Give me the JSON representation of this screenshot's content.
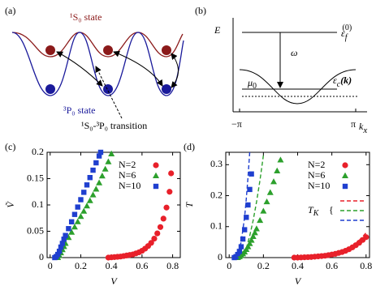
{
  "panel_a": {
    "label": "(a)",
    "upper_state": "¹S₀ state",
    "lower_state": "³P₀ state",
    "transition": "¹S₀-³P₀ transition"
  },
  "panel_b": {
    "label": "(b)",
    "y_axis": "E",
    "x_axis": {
      "symbol": "k",
      "sub": "x"
    },
    "x_ticks": [
      "−π",
      "π"
    ],
    "flat_band": {
      "symbol": "ε",
      "sub": "f",
      "sup": "(0)"
    },
    "dispersive_band": {
      "symbol": "ε",
      "sub": "c",
      "arg": "(k)"
    },
    "hybridization": "ω",
    "chemical_potential": {
      "symbol": "μ",
      "sub": "0"
    }
  },
  "chart_data": [
    {
      "type": "scatter",
      "panel_label": "(c)",
      "x_label": "V",
      "y_label": "Ṽ",
      "xlim": [
        -0.02,
        0.85
      ],
      "ylim": [
        0,
        0.2
      ],
      "xticks": [
        0,
        0.2,
        0.4,
        0.6,
        0.8
      ],
      "yticks": [
        0,
        0.05,
        0.1,
        0.15,
        0.2
      ],
      "series": [
        {
          "name": "N=2",
          "color": "#e8202a",
          "marker": "circle",
          "x": [
            0.38,
            0.4,
            0.42,
            0.44,
            0.46,
            0.48,
            0.5,
            0.52,
            0.54,
            0.56,
            0.58,
            0.6,
            0.62,
            0.64,
            0.66,
            0.68,
            0.7,
            0.72,
            0.74,
            0.76,
            0.78,
            0.79
          ],
          "values": [
            0,
            0.0005,
            0.001,
            0.0015,
            0.002,
            0.003,
            0.004,
            0.005,
            0.006,
            0.008,
            0.01,
            0.013,
            0.017,
            0.022,
            0.028,
            0.036,
            0.046,
            0.058,
            0.074,
            0.095,
            0.125,
            0.16
          ]
        },
        {
          "name": "N=6",
          "color": "#2ca02c",
          "marker": "triangle",
          "x": [
            0.05,
            0.06,
            0.07,
            0.08,
            0.09,
            0.1,
            0.12,
            0.14,
            0.16,
            0.18,
            0.2,
            0.22,
            0.24,
            0.26,
            0.28,
            0.3,
            0.32,
            0.34,
            0.36,
            0.38,
            0.4
          ],
          "values": [
            0,
            0.004,
            0.009,
            0.015,
            0.021,
            0.027,
            0.038,
            0.048,
            0.058,
            0.068,
            0.078,
            0.088,
            0.098,
            0.108,
            0.119,
            0.13,
            0.142,
            0.155,
            0.168,
            0.182,
            0.197
          ]
        },
        {
          "name": "N=10",
          "color": "#1f3fcf",
          "marker": "square",
          "x": [
            0.03,
            0.04,
            0.05,
            0.06,
            0.07,
            0.08,
            0.09,
            0.1,
            0.12,
            0.14,
            0.16,
            0.18,
            0.2,
            0.22,
            0.24,
            0.26,
            0.28,
            0.3,
            0.32,
            0.33
          ],
          "values": [
            0,
            0.002,
            0.006,
            0.012,
            0.02,
            0.027,
            0.035,
            0.042,
            0.055,
            0.068,
            0.082,
            0.096,
            0.11,
            0.124,
            0.138,
            0.152,
            0.166,
            0.18,
            0.193,
            0.2
          ]
        }
      ]
    },
    {
      "type": "scatter",
      "panel_label": "(d)",
      "x_label": "V",
      "y_label": "T",
      "xlim": [
        -0.02,
        0.82
      ],
      "ylim": [
        0,
        0.34
      ],
      "xticks": [
        0,
        0.2,
        0.4,
        0.6,
        0.8
      ],
      "yticks": [
        0,
        0.1,
        0.2,
        0.3
      ],
      "fit_label": {
        "symbol": "T",
        "sub": "K"
      },
      "series": [
        {
          "name": "N=2",
          "color": "#e8202a",
          "marker": "circle",
          "x": [
            0.38,
            0.4,
            0.42,
            0.44,
            0.46,
            0.48,
            0.5,
            0.52,
            0.54,
            0.56,
            0.58,
            0.6,
            0.62,
            0.64,
            0.66,
            0.68,
            0.7,
            0.72,
            0.74,
            0.76,
            0.78,
            0.8
          ],
          "values": [
            0,
            0,
            0.0005,
            0.001,
            0.0015,
            0.002,
            0.003,
            0.004,
            0.005,
            0.006,
            0.008,
            0.01,
            0.012,
            0.015,
            0.018,
            0.022,
            0.027,
            0.033,
            0.04,
            0.048,
            0.057,
            0.066
          ]
        },
        {
          "name": "N=6",
          "color": "#2ca02c",
          "marker": "triangle",
          "x": [
            0.05,
            0.06,
            0.07,
            0.08,
            0.09,
            0.1,
            0.11,
            0.12,
            0.13,
            0.14,
            0.15,
            0.16,
            0.18,
            0.2,
            0.22,
            0.24,
            0.26,
            0.28,
            0.3
          ],
          "values": [
            0,
            0.003,
            0.007,
            0.012,
            0.018,
            0.026,
            0.035,
            0.045,
            0.056,
            0.068,
            0.08,
            0.093,
            0.12,
            0.15,
            0.18,
            0.21,
            0.245,
            0.28,
            0.315
          ]
        },
        {
          "name": "N=10",
          "color": "#1f3fcf",
          "marker": "square",
          "x": [
            0.03,
            0.04,
            0.05,
            0.06,
            0.07,
            0.08,
            0.09,
            0.1,
            0.11,
            0.12,
            0.13
          ],
          "values": [
            0,
            0.003,
            0.01,
            0.02,
            0.035,
            0.06,
            0.09,
            0.13,
            0.17,
            0.22,
            0.27
          ]
        },
        {
          "color": "#e8202a",
          "style": "dashed",
          "x": [
            0.4,
            0.5,
            0.6,
            0.65,
            0.7,
            0.75,
            0.8
          ],
          "values": [
            0,
            0.002,
            0.01,
            0.018,
            0.03,
            0.05,
            0.08
          ]
        },
        {
          "color": "#2ca02c",
          "style": "dashed",
          "x": [
            0.05,
            0.08,
            0.1,
            0.12,
            0.14,
            0.16,
            0.18,
            0.2
          ],
          "values": [
            0,
            0.01,
            0.03,
            0.07,
            0.12,
            0.18,
            0.25,
            0.33
          ]
        },
        {
          "color": "#1f3fcf",
          "style": "dashed",
          "x": [
            0.03,
            0.05,
            0.07,
            0.09,
            0.1,
            0.11,
            0.12
          ],
          "values": [
            0,
            0.01,
            0.05,
            0.13,
            0.19,
            0.26,
            0.34
          ]
        }
      ]
    }
  ]
}
